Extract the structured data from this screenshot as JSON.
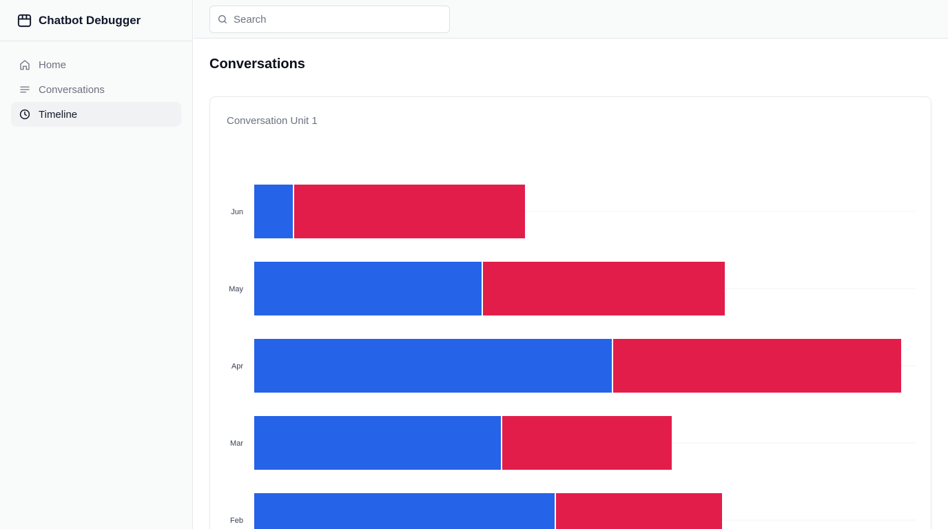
{
  "app": {
    "title": "Chatbot Debugger"
  },
  "sidebar": {
    "items": [
      {
        "label": "Home",
        "icon": "home-icon",
        "active": false
      },
      {
        "label": "Conversations",
        "icon": "list-icon",
        "active": false
      },
      {
        "label": "Timeline",
        "icon": "clock-icon",
        "active": true
      }
    ]
  },
  "search": {
    "placeholder": "Search",
    "value": ""
  },
  "page": {
    "title": "Conversations"
  },
  "card": {
    "title": "Conversation Unit 1"
  },
  "colors": {
    "series_a": "#2563e8",
    "series_b": "#e31d4a"
  },
  "chart_data": {
    "type": "bar",
    "orientation": "horizontal",
    "stacked": true,
    "categories": [
      "Jun",
      "May",
      "Apr",
      "Mar",
      "Feb"
    ],
    "series": [
      {
        "values": [
          56,
          330,
          519,
          358,
          436
        ]
      },
      {
        "values": [
          337,
          353,
          420,
          248,
          243
        ]
      }
    ],
    "xlim": [
      0,
      960
    ],
    "grid": true
  }
}
